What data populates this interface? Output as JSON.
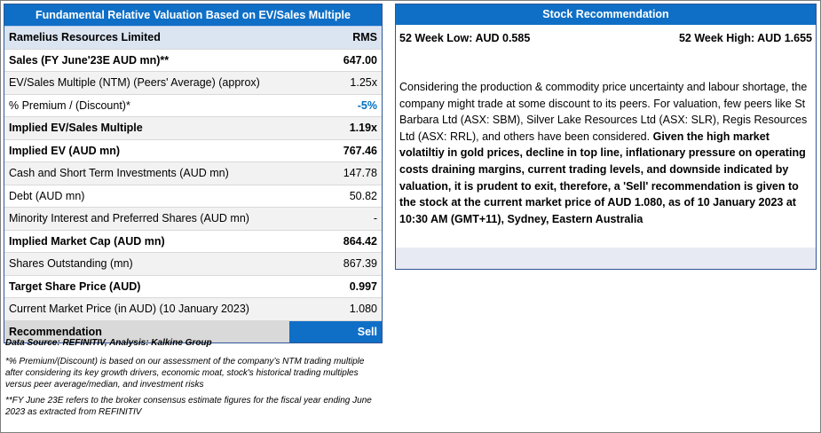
{
  "left_table": {
    "title": "Fundamental Relative Valuation Based on EV/Sales Multiple",
    "company": "Ramelius Resources Limited",
    "ticker": "RMS",
    "rows": [
      {
        "label": "Sales (FY June'23E AUD mn)**",
        "value": "647.00",
        "bold": true
      },
      {
        "label": "EV/Sales Multiple (NTM)  (Peers' Average) (approx)",
        "value": "1.25x",
        "bold": false
      },
      {
        "label": "% Premium / (Discount)*",
        "value": "-5%",
        "bold": false,
        "blue": true
      },
      {
        "label": "Implied EV/Sales Multiple",
        "value": "1.19x",
        "bold": true
      },
      {
        "label": "Implied EV (AUD mn)",
        "value": "767.46",
        "bold": true
      },
      {
        "label": "Cash and Short Term Investments (AUD mn)",
        "value": "147.78",
        "bold": false
      },
      {
        "label": "Debt (AUD mn)",
        "value": "50.82",
        "bold": false
      },
      {
        "label": "Minority Interest and Preferred Shares (AUD mn)",
        "value": "-",
        "bold": false
      },
      {
        "label": "Implied Market Cap (AUD mn)",
        "value": "864.42",
        "bold": true
      },
      {
        "label": "Shares Outstanding (mn)",
        "value": "867.39",
        "bold": false
      },
      {
        "label": "Target Share Price (AUD)",
        "value": "0.997",
        "bold": true
      },
      {
        "label": "Current Market Price (in AUD) (10 January 2023)",
        "value": "1.080",
        "bold": false
      }
    ],
    "recommendation_label": "Recommendation",
    "recommendation_value": "Sell"
  },
  "notes": {
    "source": "Data Source: REFINITIV, Analysis: Kalkine Group",
    "note1": "*% Premium/(Discount) is based on our assessment of the company’s NTM trading multiple after considering its key growth drivers, economic moat, stock's historical trading multiples versus peer average/median, and investment risks",
    "note2": "**FY June 23E refers to the broker consensus estimate figures for the fiscal year ending June 2023  as extracted from REFINITIV"
  },
  "right_panel": {
    "title": "Stock Recommendation",
    "low": "52 Week Low: AUD 0.585",
    "high": "52 Week High: AUD 1.655",
    "para_normal": "Considering the production & commodity price uncertainty and labour shortage, the company might trade at some discount to its peers. For valuation, few peers like St Barbara Ltd (ASX: SBM), Silver Lake Resources Ltd (ASX: SLR), Regis Resources Ltd (ASX: RRL), and others have been considered. ",
    "para_bold": "Given the high market volatiltiy in gold prices, decline in top line, inflationary pressure on operating costs draining margins, current trading levels, and downside indicated by valuation, it is prudent to exit, therefore, a 'Sell' recommendation is given to the stock at the current market price of AUD 1.080, as of 10 January 2023 at 10:30 AM (GMT+11), Sydney, Eastern Australia"
  }
}
